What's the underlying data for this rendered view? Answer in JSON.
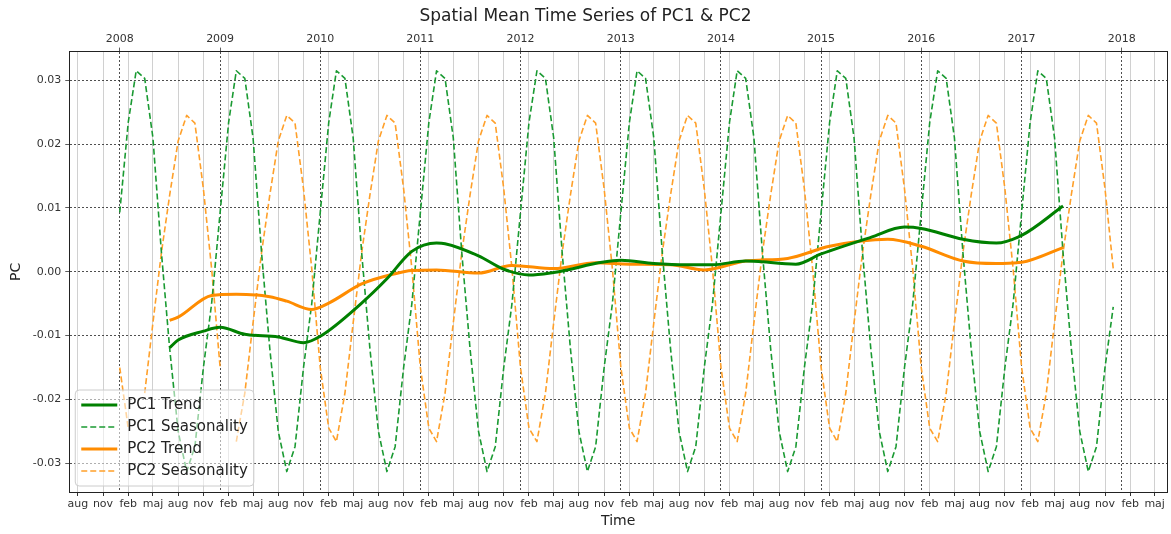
{
  "chart_data": {
    "type": "line",
    "title": "Spatial Mean Time Series of PC1 & PC2",
    "xlabel": "Time",
    "ylabel": "PC",
    "x": [
      "2008-01",
      "2008-02",
      "2008-03",
      "2008-04",
      "2008-05",
      "2008-06",
      "2008-07",
      "2008-08",
      "2008-09",
      "2008-10",
      "2008-11",
      "2008-12",
      "2009-01",
      "2009-02",
      "2009-03",
      "2009-04",
      "2009-05",
      "2009-06",
      "2009-07",
      "2009-08",
      "2009-09",
      "2009-10",
      "2009-11",
      "2009-12",
      "2010-01",
      "2010-02",
      "2010-03",
      "2010-04",
      "2010-05",
      "2010-06",
      "2010-07",
      "2010-08",
      "2010-09",
      "2010-10",
      "2010-11",
      "2010-12",
      "2011-01",
      "2011-02",
      "2011-03",
      "2011-04",
      "2011-05",
      "2011-06",
      "2011-07",
      "2011-08",
      "2011-09",
      "2011-10",
      "2011-11",
      "2011-12",
      "2012-01",
      "2012-02",
      "2012-03",
      "2012-04",
      "2012-05",
      "2012-06",
      "2012-07",
      "2012-08",
      "2012-09",
      "2012-10",
      "2012-11",
      "2012-12",
      "2013-01",
      "2013-02",
      "2013-03",
      "2013-04",
      "2013-05",
      "2013-06",
      "2013-07",
      "2013-08",
      "2013-09",
      "2013-10",
      "2013-11",
      "2013-12",
      "2014-01",
      "2014-02",
      "2014-03",
      "2014-04",
      "2014-05",
      "2014-06",
      "2014-07",
      "2014-08",
      "2014-09",
      "2014-10",
      "2014-11",
      "2014-12",
      "2015-01",
      "2015-02",
      "2015-03",
      "2015-04",
      "2015-05",
      "2015-06",
      "2015-07",
      "2015-08",
      "2015-09",
      "2015-10",
      "2015-11",
      "2015-12",
      "2016-01",
      "2016-02",
      "2016-03",
      "2016-04",
      "2016-05",
      "2016-06",
      "2016-07",
      "2016-08",
      "2016-09",
      "2016-10",
      "2016-11",
      "2016-12",
      "2017-01",
      "2017-02",
      "2017-03",
      "2017-04",
      "2017-05",
      "2017-06",
      "2017-07",
      "2017-08",
      "2017-09",
      "2017-10",
      "2017-11",
      "2017-12"
    ],
    "series": [
      {
        "name": "PC1 Trend",
        "color": "#008000",
        "line_style": "solid",
        "x": [
          "2008-07",
          "2008-08",
          "2008-11",
          "2009-01",
          "2009-04",
          "2009-08",
          "2009-11",
          "2010-01",
          "2010-06",
          "2010-09",
          "2010-12",
          "2011-03",
          "2011-04",
          "2011-08",
          "2011-11",
          "2012-02",
          "2012-05",
          "2013-01",
          "2013-05",
          "2013-09",
          "2013-12",
          "2014-04",
          "2014-10",
          "2015-01",
          "2015-07",
          "2015-11",
          "2016-01",
          "2016-06",
          "2016-10",
          "2017-01",
          "2017-06"
        ],
        "values": [
          -0.0119,
          -0.0107,
          -0.0093,
          -0.0087,
          -0.0098,
          -0.0102,
          -0.0111,
          -0.0101,
          -0.0049,
          -0.0011,
          0.0032,
          0.0045,
          0.0044,
          0.0025,
          0.0004,
          -0.0005,
          -0.0001,
          0.0018,
          0.0013,
          0.0011,
          0.0011,
          0.0017,
          0.0012,
          0.0028,
          0.0054,
          0.007,
          0.0068,
          0.0051,
          0.0045,
          0.0057,
          0.0103
        ]
      },
      {
        "name": "PC1 Seasonality",
        "color": "#1a9a32",
        "line_style": "dashed",
        "values": [
          0.0093,
          0.0234,
          0.0315,
          0.0303,
          0.021,
          0.003,
          -0.012,
          -0.025,
          -0.0313,
          -0.0274,
          -0.015,
          -0.005,
          0.0093,
          0.0234,
          0.0315,
          0.0303,
          0.021,
          0.003,
          -0.012,
          -0.025,
          -0.0313,
          -0.0274,
          -0.015,
          -0.005,
          0.0093,
          0.0234,
          0.0315,
          0.0303,
          0.021,
          0.003,
          -0.012,
          -0.025,
          -0.0313,
          -0.0274,
          -0.015,
          -0.005,
          0.0093,
          0.0234,
          0.0315,
          0.0303,
          0.021,
          0.003,
          -0.012,
          -0.025,
          -0.0313,
          -0.0274,
          -0.015,
          -0.005,
          0.0093,
          0.0234,
          0.0315,
          0.0303,
          0.021,
          0.003,
          -0.012,
          -0.025,
          -0.0313,
          -0.0274,
          -0.015,
          -0.005,
          0.0093,
          0.0234,
          0.0315,
          0.0303,
          0.021,
          0.003,
          -0.012,
          -0.025,
          -0.0313,
          -0.0274,
          -0.015,
          -0.005,
          0.0093,
          0.0234,
          0.0315,
          0.0303,
          0.021,
          0.003,
          -0.012,
          -0.025,
          -0.0313,
          -0.0274,
          -0.015,
          -0.005,
          0.0093,
          0.0234,
          0.0315,
          0.0303,
          0.021,
          0.003,
          -0.012,
          -0.025,
          -0.0313,
          -0.0274,
          -0.015,
          -0.005,
          0.0093,
          0.0234,
          0.0315,
          0.0303,
          0.021,
          0.003,
          -0.012,
          -0.025,
          -0.0313,
          -0.0274,
          -0.015,
          -0.005,
          0.0093,
          0.0234,
          0.0315,
          0.0303,
          0.021,
          0.003,
          -0.012,
          -0.025,
          -0.0313,
          -0.0274,
          -0.015,
          -0.0055
        ]
      },
      {
        "name": "PC2 Trend",
        "color": "#ff8c00",
        "line_style": "solid",
        "x": [
          "2008-07",
          "2008-08",
          "2008-12",
          "2009-03",
          "2009-07",
          "2009-09",
          "2009-12",
          "2010-02",
          "2010-06",
          "2010-10",
          "2010-12",
          "2011-03",
          "2011-08",
          "2011-12",
          "2012-05",
          "2012-10",
          "2013-02",
          "2013-07",
          "2013-11",
          "2014-04",
          "2014-09",
          "2015-02",
          "2015-09",
          "2016-01",
          "2016-06",
          "2016-10",
          "2017-01",
          "2017-06"
        ],
        "values": [
          -0.0076,
          -0.0071,
          -0.0037,
          -0.0035,
          -0.0039,
          -0.0046,
          -0.0059,
          -0.0049,
          -0.0019,
          -0.0003,
          0.0002,
          0.0003,
          -0.0002,
          0.001,
          0.0005,
          0.0014,
          0.0012,
          0.0011,
          0.0003,
          0.0017,
          0.0021,
          0.004,
          0.0051,
          0.004,
          0.0017,
          0.0013,
          0.0015,
          0.0038
        ]
      },
      {
        "name": "PC2 Seasonality",
        "color": "#ffa02a",
        "line_style": "dashed",
        "values": [
          -0.015,
          -0.0245,
          null,
          -0.019,
          -0.008,
          0.003,
          0.012,
          0.0205,
          0.0245,
          0.0233,
          0.013,
          0.0005,
          -0.015,
          null,
          -0.0266,
          -0.019,
          -0.008,
          0.003,
          0.012,
          0.0205,
          0.0245,
          0.0233,
          0.013,
          0.0005,
          -0.015,
          -0.0245,
          -0.0266,
          -0.019,
          -0.008,
          0.003,
          0.012,
          0.0205,
          0.0245,
          0.0233,
          0.013,
          0.0005,
          -0.015,
          -0.0245,
          -0.0266,
          -0.019,
          -0.008,
          0.003,
          0.012,
          0.0205,
          0.0245,
          0.0233,
          0.013,
          0.0005,
          -0.015,
          -0.0245,
          -0.0266,
          -0.019,
          -0.008,
          0.003,
          0.012,
          0.0205,
          0.0245,
          0.0233,
          0.013,
          0.0005,
          -0.015,
          -0.0245,
          -0.0266,
          -0.019,
          -0.008,
          0.003,
          0.012,
          0.0205,
          0.0245,
          0.0233,
          0.013,
          0.0005,
          -0.015,
          -0.0245,
          -0.0266,
          -0.019,
          -0.008,
          0.003,
          0.012,
          0.0205,
          0.0245,
          0.0233,
          0.013,
          0.0005,
          -0.015,
          -0.0245,
          -0.0266,
          -0.019,
          -0.008,
          0.003,
          0.012,
          0.0205,
          0.0245,
          0.0233,
          0.013,
          0.0005,
          -0.015,
          -0.0245,
          -0.0266,
          -0.019,
          -0.008,
          0.003,
          0.012,
          0.0205,
          0.0245,
          0.0233,
          0.013,
          0.0005,
          -0.015,
          -0.0245,
          -0.0266,
          -0.019,
          -0.008,
          0.003,
          0.012,
          0.0205,
          0.0245,
          0.0233,
          0.013,
          0.0005
        ]
      }
    ],
    "xlim": [
      "2007-07",
      "2018-06-15"
    ],
    "xticks": [
      {
        "value": "2007-08",
        "label": "aug"
      },
      {
        "value": "2007-11",
        "label": "nov"
      },
      {
        "value": "2008-02",
        "label": "feb"
      },
      {
        "value": "2008-05",
        "label": "maj"
      },
      {
        "value": "2008-08",
        "label": "aug"
      },
      {
        "value": "2008-11",
        "label": "nov"
      },
      {
        "value": "2009-02",
        "label": "feb"
      },
      {
        "value": "2009-05",
        "label": "maj"
      },
      {
        "value": "2009-08",
        "label": "aug"
      },
      {
        "value": "2009-11",
        "label": "nov"
      },
      {
        "value": "2010-02",
        "label": "feb"
      },
      {
        "value": "2010-05",
        "label": "maj"
      },
      {
        "value": "2010-08",
        "label": "aug"
      },
      {
        "value": "2010-11",
        "label": "nov"
      },
      {
        "value": "2011-02",
        "label": "feb"
      },
      {
        "value": "2011-05",
        "label": "maj"
      },
      {
        "value": "2011-08",
        "label": "aug"
      },
      {
        "value": "2011-11",
        "label": "nov"
      },
      {
        "value": "2012-02",
        "label": "feb"
      },
      {
        "value": "2012-05",
        "label": "maj"
      },
      {
        "value": "2012-08",
        "label": "aug"
      },
      {
        "value": "2012-11",
        "label": "nov"
      },
      {
        "value": "2013-02",
        "label": "feb"
      },
      {
        "value": "2013-05",
        "label": "maj"
      },
      {
        "value": "2013-08",
        "label": "aug"
      },
      {
        "value": "2013-11",
        "label": "nov"
      },
      {
        "value": "2014-02",
        "label": "feb"
      },
      {
        "value": "2014-05",
        "label": "maj"
      },
      {
        "value": "2014-08",
        "label": "aug"
      },
      {
        "value": "2014-11",
        "label": "nov"
      },
      {
        "value": "2015-02",
        "label": "feb"
      },
      {
        "value": "2015-05",
        "label": "maj"
      },
      {
        "value": "2015-08",
        "label": "aug"
      },
      {
        "value": "2015-11",
        "label": "nov"
      },
      {
        "value": "2016-02",
        "label": "feb"
      },
      {
        "value": "2016-05",
        "label": "maj"
      },
      {
        "value": "2016-08",
        "label": "aug"
      },
      {
        "value": "2016-11",
        "label": "nov"
      },
      {
        "value": "2017-02",
        "label": "feb"
      },
      {
        "value": "2017-05",
        "label": "maj"
      },
      {
        "value": "2017-08",
        "label": "aug"
      },
      {
        "value": "2017-11",
        "label": "nov"
      },
      {
        "value": "2018-02",
        "label": "feb"
      },
      {
        "value": "2018-05",
        "label": "maj"
      }
    ],
    "x2lim": [
      "2007-07",
      "2018-06-15"
    ],
    "x2ticks": [
      "2008",
      "2009",
      "2010",
      "2011",
      "2012",
      "2013",
      "2014",
      "2015",
      "2016",
      "2017",
      "2018"
    ],
    "ylim": [
      -0.0345,
      0.0345
    ],
    "yticks": [
      -0.03,
      -0.02,
      -0.01,
      {
        "value": 0,
        "label": "0.00"
      },
      0.01,
      0.02,
      0.03
    ],
    "grid": true,
    "legend": "bottom left"
  }
}
